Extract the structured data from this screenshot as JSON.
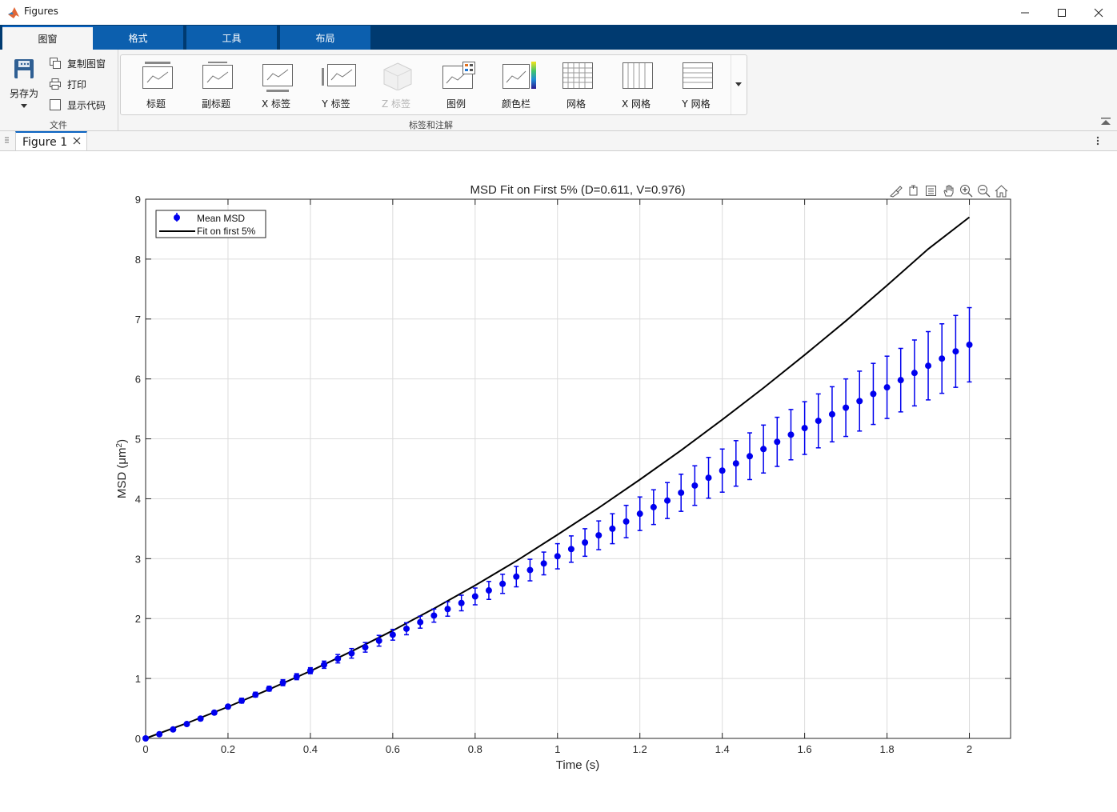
{
  "window": {
    "title": "Figures"
  },
  "ribbon_tabs": [
    {
      "label": "图窗",
      "active": true
    },
    {
      "label": "格式",
      "active": false
    },
    {
      "label": "工具",
      "active": false
    },
    {
      "label": "布局",
      "active": false
    }
  ],
  "file_section": {
    "save_as": "另存为",
    "copy_figure": "复制图窗",
    "print": "打印",
    "show_code": "显示代码",
    "section_label": "文件"
  },
  "labels_section": {
    "section_label": "标签和注解",
    "buttons": [
      {
        "label": "标题",
        "icon": "title-icon",
        "enabled": true
      },
      {
        "label": "副标题",
        "icon": "subtitle-icon",
        "enabled": true
      },
      {
        "label": "X 标签",
        "icon": "x-label-icon",
        "enabled": true
      },
      {
        "label": "Y 标签",
        "icon": "y-label-icon",
        "enabled": true
      },
      {
        "label": "Z 标签",
        "icon": "z-label-icon",
        "enabled": false
      },
      {
        "label": "图例",
        "icon": "legend-icon",
        "enabled": true
      },
      {
        "label": "颜色栏",
        "icon": "colorbar-icon",
        "enabled": true
      },
      {
        "label": "网格",
        "icon": "grid-icon",
        "enabled": true
      },
      {
        "label": "X 网格",
        "icon": "x-grid-icon",
        "enabled": true
      },
      {
        "label": "Y 网格",
        "icon": "y-grid-icon",
        "enabled": true
      }
    ]
  },
  "figure_tab": {
    "label": "Figure 1"
  },
  "axes_toolbar": [
    "brush-icon",
    "data-tips-icon",
    "legend-toggle-icon",
    "pan-icon",
    "zoom-in-icon",
    "zoom-out-icon",
    "home-icon"
  ],
  "chart_data": {
    "type": "scatter",
    "title": "MSD Fit on First 5% (D=0.611, V=0.976)",
    "xlabel": "Time (s)",
    "ylabel_main": "MSD  (μm",
    "ylabel_sup": "2",
    "ylabel_end": ")",
    "xlim": [
      0,
      2.1
    ],
    "ylim": [
      0,
      9
    ],
    "xticks": [
      0,
      0.2,
      0.4,
      0.6,
      0.8,
      1,
      1.2,
      1.4,
      1.6,
      1.8,
      2
    ],
    "xtick_labels": [
      "0",
      "0.2",
      "0.4",
      "0.6",
      "0.8",
      "1",
      "1.2",
      "1.4",
      "1.6",
      "1.8",
      "2"
    ],
    "yticks": [
      0,
      1,
      2,
      3,
      4,
      5,
      6,
      7,
      8,
      9
    ],
    "ytick_labels": [
      "0",
      "1",
      "2",
      "3",
      "4",
      "5",
      "6",
      "7",
      "8",
      "9"
    ],
    "grid": true,
    "legend_position": "top-left",
    "series": [
      {
        "name": "Mean MSD",
        "kind": "errorbar",
        "color": "#0000ee",
        "x": [
          0,
          0.0333,
          0.0667,
          0.1,
          0.1333,
          0.1667,
          0.2,
          0.2333,
          0.2667,
          0.3,
          0.3333,
          0.3667,
          0.4,
          0.4333,
          0.4667,
          0.5,
          0.5333,
          0.5667,
          0.6,
          0.6333,
          0.6667,
          0.7,
          0.7333,
          0.7667,
          0.8,
          0.8333,
          0.8667,
          0.9,
          0.9333,
          0.9667,
          1.0,
          1.0333,
          1.0667,
          1.1,
          1.1333,
          1.1667,
          1.2,
          1.2333,
          1.2667,
          1.3,
          1.3333,
          1.3667,
          1.4,
          1.4333,
          1.4667,
          1.5,
          1.5333,
          1.5667,
          1.6,
          1.6333,
          1.6667,
          1.7,
          1.7333,
          1.7667,
          1.8,
          1.8333,
          1.8667,
          1.9,
          1.9333,
          1.9667,
          2.0
        ],
        "y": [
          0,
          0.07,
          0.15,
          0.24,
          0.33,
          0.43,
          0.53,
          0.63,
          0.73,
          0.83,
          0.93,
          1.03,
          1.13,
          1.23,
          1.33,
          1.42,
          1.52,
          1.63,
          1.73,
          1.83,
          1.94,
          2.05,
          2.16,
          2.26,
          2.37,
          2.47,
          2.58,
          2.7,
          2.81,
          2.92,
          3.04,
          3.16,
          3.27,
          3.39,
          3.5,
          3.62,
          3.75,
          3.86,
          3.97,
          4.1,
          4.22,
          4.35,
          4.47,
          4.59,
          4.71,
          4.83,
          4.95,
          5.07,
          5.18,
          5.3,
          5.41,
          5.52,
          5.63,
          5.75,
          5.86,
          5.98,
          6.1,
          6.22,
          6.34,
          6.46,
          6.57
        ],
        "err": [
          0,
          0.01,
          0.02,
          0.02,
          0.03,
          0.03,
          0.03,
          0.04,
          0.04,
          0.04,
          0.05,
          0.05,
          0.05,
          0.06,
          0.07,
          0.08,
          0.08,
          0.09,
          0.09,
          0.1,
          0.1,
          0.11,
          0.12,
          0.13,
          0.14,
          0.15,
          0.16,
          0.17,
          0.18,
          0.19,
          0.21,
          0.22,
          0.23,
          0.24,
          0.25,
          0.27,
          0.28,
          0.29,
          0.3,
          0.31,
          0.33,
          0.34,
          0.36,
          0.38,
          0.39,
          0.4,
          0.41,
          0.42,
          0.44,
          0.45,
          0.46,
          0.48,
          0.5,
          0.51,
          0.52,
          0.53,
          0.55,
          0.57,
          0.58,
          0.6,
          0.62
        ]
      },
      {
        "name": "Fit on first 5%",
        "kind": "line",
        "color": "#000000",
        "x": [
          0,
          0.1,
          0.2,
          0.3,
          0.4,
          0.5,
          0.6,
          0.7,
          0.8,
          0.9,
          1.0,
          1.1,
          1.2,
          1.3,
          1.4,
          1.5,
          1.6,
          1.7,
          1.8,
          1.9,
          2.0
        ],
        "y": [
          0,
          0.254,
          0.527,
          0.818,
          1.125,
          1.453,
          1.8,
          2.167,
          2.555,
          2.962,
          3.4,
          3.849,
          4.32,
          4.808,
          5.32,
          5.849,
          6.4,
          6.968,
          7.56,
          8.168,
          8.7
        ]
      }
    ]
  }
}
